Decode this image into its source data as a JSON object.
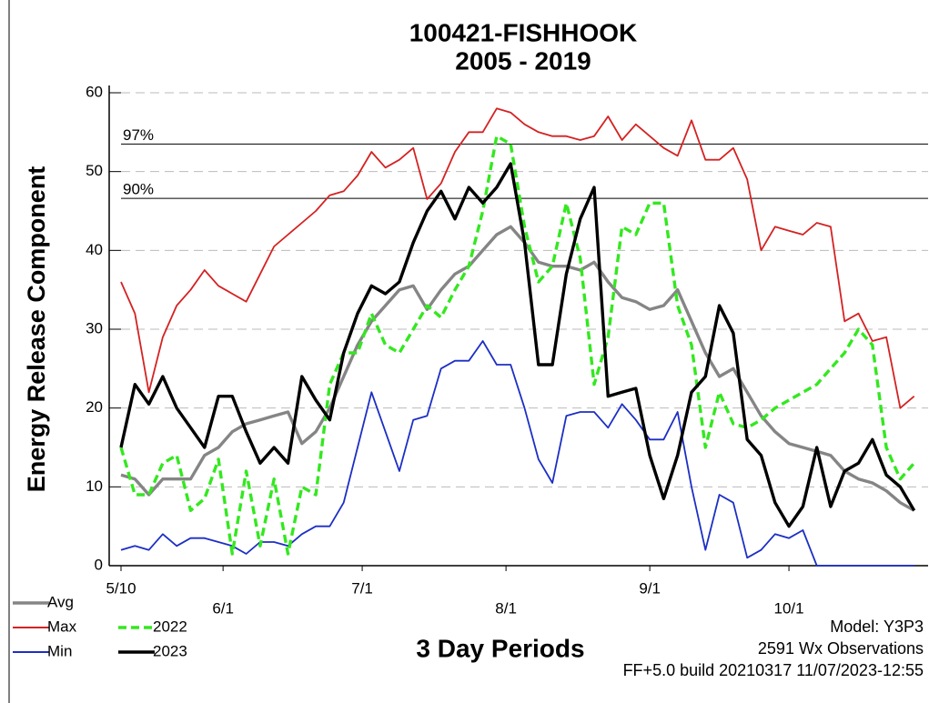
{
  "chart_data": {
    "type": "line",
    "title": "100421-FISHHOOK",
    "subtitle": "2005 - 2019",
    "x_label": "3 Day Periods",
    "y_label": "Energy Release Component",
    "notes": [
      "Model: Y3P3",
      "2591 Wx Observations",
      "FF+5.0 build 20210317 11/07/2023-12:55"
    ],
    "x": [
      0,
      3,
      6,
      9,
      12,
      15,
      18,
      21,
      24,
      27,
      30,
      33,
      36,
      39,
      42,
      45,
      48,
      51,
      54,
      57,
      60,
      63,
      66,
      69,
      72,
      75,
      78,
      81,
      84,
      87,
      90,
      93,
      96,
      99,
      102,
      105,
      108,
      111,
      114,
      117,
      120,
      123,
      126,
      129,
      132,
      135,
      138,
      141,
      144,
      147,
      150,
      153,
      156,
      159,
      162,
      165,
      168,
      171
    ],
    "xlim": [
      0,
      174
    ],
    "xticks": [
      {
        "value": 0,
        "label": "5/10"
      },
      {
        "value": 22,
        "label": "6/1"
      },
      {
        "value": 52,
        "label": "7/1"
      },
      {
        "value": 83,
        "label": "8/1"
      },
      {
        "value": 114,
        "label": "9/1"
      },
      {
        "value": 144,
        "label": "10/1"
      }
    ],
    "ylim": [
      0,
      60
    ],
    "yticks": [
      0,
      10,
      20,
      30,
      40,
      50,
      60
    ],
    "grid": true,
    "thresholds": [
      {
        "label": "97%",
        "value": 53.5
      },
      {
        "label": "90%",
        "value": 46.6
      }
    ],
    "series": [
      {
        "name": "Avg",
        "color": "#858585",
        "values": [
          11.5,
          11,
          9,
          11,
          11,
          11,
          14,
          15,
          17,
          18,
          18.5,
          19,
          19.5,
          15.5,
          17,
          20,
          24,
          28,
          31,
          33,
          35,
          35.5,
          32.5,
          35,
          37,
          38,
          40,
          42,
          43,
          41,
          38.5,
          38,
          38,
          37.5,
          38.5,
          36,
          34,
          33.5,
          32.5,
          33,
          35,
          31,
          27,
          24,
          25,
          22,
          19,
          17,
          15.5,
          15,
          14.5,
          14,
          12,
          11,
          10.5,
          9.5,
          8,
          7
        ]
      },
      {
        "name": "Max",
        "color": "#d42222",
        "values": [
          36,
          32,
          22,
          29,
          33,
          35,
          37.5,
          35.5,
          34.5,
          33.5,
          37,
          40.5,
          42,
          43.5,
          45,
          47,
          47.5,
          49.5,
          52.5,
          50.5,
          51.5,
          53,
          46.5,
          48.5,
          52.5,
          55,
          55,
          58,
          57.5,
          56,
          55,
          54.5,
          54.5,
          54,
          54.5,
          57,
          54,
          56,
          54.5,
          53,
          52,
          56.5,
          51.5,
          51.5,
          53,
          49,
          40,
          43,
          42.5,
          42,
          43.5,
          43,
          31,
          32,
          28.5,
          29,
          20,
          21.5
        ]
      },
      {
        "name": "Min",
        "color": "#1c2fc4",
        "values": [
          2,
          2.5,
          2,
          4,
          2.5,
          3.5,
          3.5,
          3,
          2.5,
          1.5,
          3,
          3,
          2.5,
          4,
          5,
          5,
          8,
          15,
          22,
          17,
          12,
          18.5,
          19,
          25,
          26,
          26,
          28.5,
          25.5,
          25.5,
          20,
          13.5,
          10.5,
          19,
          19.5,
          19.5,
          17.5,
          20.5,
          18.5,
          16,
          16,
          19.5,
          10,
          2,
          9,
          8,
          1,
          2,
          4,
          3.5,
          4.5,
          0,
          0,
          0,
          0,
          0,
          0,
          0,
          0
        ]
      },
      {
        "name": "2022",
        "color": "#33e81f",
        "dashed": true,
        "values": [
          15,
          9,
          9,
          13,
          14,
          7,
          8.5,
          13.5,
          1.5,
          12,
          2.5,
          11,
          1.5,
          10,
          9,
          23,
          27,
          27,
          32,
          28,
          27,
          30,
          33,
          31.5,
          35,
          38,
          45,
          54.5,
          53.5,
          43,
          36,
          38,
          46,
          39,
          23,
          29,
          43,
          42,
          46,
          46,
          33,
          28,
          15,
          22,
          18,
          17.5,
          18.5,
          20,
          21,
          22,
          23,
          25,
          27,
          30,
          28,
          15,
          11,
          13
        ]
      },
      {
        "name": "2023",
        "color": "#000000",
        "values": [
          15,
          23,
          20.5,
          24,
          20,
          17.5,
          15,
          21.5,
          21.5,
          17,
          13,
          15,
          13,
          24,
          21,
          18.5,
          27,
          32,
          35.5,
          34.5,
          36,
          41,
          45,
          47.5,
          44,
          48,
          46,
          48,
          51,
          41,
          25.5,
          25.5,
          37,
          44,
          48,
          21.5,
          22,
          22.5,
          14,
          8.5,
          14,
          22,
          24,
          33,
          29.5,
          16,
          14,
          8,
          5,
          7.5,
          15,
          7.5,
          12,
          13,
          16,
          11.5,
          10,
          7
        ]
      }
    ]
  }
}
